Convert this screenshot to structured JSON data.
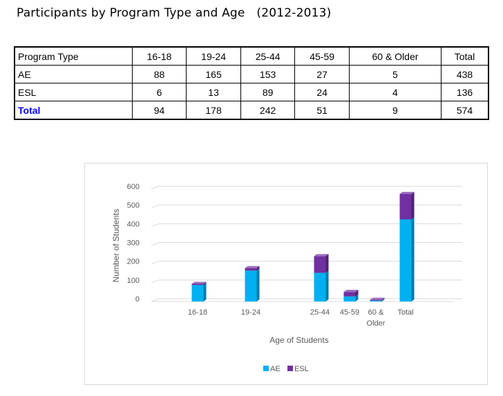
{
  "title": "Participants by Program Type and Age   (2012-2013)",
  "table": {
    "headers": [
      "Program Type",
      "16-18",
      "19-24",
      "25-44",
      "45-59",
      "60 & Older",
      "Total"
    ],
    "rows": [
      {
        "label": "AE",
        "values": [
          "88",
          "165",
          "153",
          "27",
          "5",
          "438"
        ]
      },
      {
        "label": "ESL",
        "values": [
          "6",
          "13",
          "89",
          "24",
          "4",
          "136"
        ]
      },
      {
        "label": "Total",
        "values": [
          "94",
          "178",
          "242",
          "51",
          "9",
          "574"
        ]
      }
    ]
  },
  "chart_data": {
    "type": "bar",
    "stacked": true,
    "categories": [
      "16-18",
      "19-24",
      "25-44",
      "45-59",
      "60 & Older",
      "Total"
    ],
    "category_lines": [
      [
        "16-18"
      ],
      [
        "19-24"
      ],
      [
        "25-44"
      ],
      [
        "45-59"
      ],
      [
        "60 &",
        "Older"
      ],
      [
        "Total"
      ]
    ],
    "series": [
      {
        "name": "AE",
        "values": [
          88,
          165,
          153,
          27,
          5,
          438
        ],
        "color": "#00b0f0"
      },
      {
        "name": "ESL",
        "values": [
          6,
          13,
          89,
          24,
          4,
          136
        ],
        "color": "#7030a0"
      }
    ],
    "xlabel": "Age of Students",
    "ylabel": "Number of Students",
    "ylim": [
      0,
      600
    ],
    "yticks": [
      "0",
      "100",
      "200",
      "300",
      "400",
      "500",
      "600"
    ],
    "grid": true,
    "legend": "bottom"
  }
}
